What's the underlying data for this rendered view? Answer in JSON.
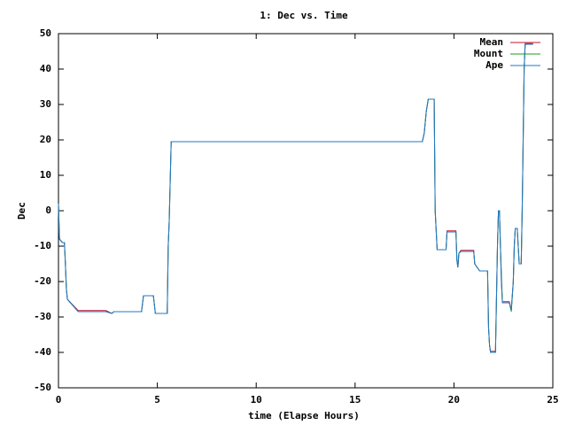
{
  "chart_data": {
    "type": "line",
    "title": "1: Dec vs. Time",
    "x_label": "time (Elapse Hours)",
    "y_label": "Dec",
    "x": [
      0,
      0.05,
      0.2,
      0.3,
      0.35,
      0.4,
      0.45,
      1,
      2.4,
      2.7,
      2.8,
      4.2,
      4.3,
      4.8,
      4.9,
      5.5,
      5.55,
      5.6,
      5.7,
      18.4,
      18.5,
      18.6,
      18.7,
      19.0,
      19.05,
      19.15,
      19.6,
      19.65,
      20.1,
      20.15,
      20.2,
      20.25,
      20.35,
      21.0,
      21.05,
      21.3,
      21.7,
      21.75,
      21.8,
      21.85,
      22.1,
      22.2,
      22.25,
      22.3,
      22.35,
      22.4,
      22.45,
      22.8,
      22.9,
      23.0,
      23.05,
      23.1,
      23.2,
      23.3,
      23.4,
      23.45,
      23.5,
      23.55,
      23.6,
      24.0
    ],
    "series": [
      {
        "name": "Mean",
        "color": "#c8102e",
        "values": [
          2,
          -8,
          -9,
          -9,
          -15,
          -22,
          -25,
          -28.2,
          -28.2,
          -29,
          -28.5,
          -28.5,
          -24,
          -24,
          -29,
          -29,
          -10,
          -3,
          19.5,
          19.5,
          22,
          28,
          31.5,
          31.5,
          0,
          -11,
          -11,
          -5.7,
          -5.7,
          -14,
          -16,
          -12,
          -11.2,
          -11.2,
          -15,
          -17,
          -17,
          -33,
          -38,
          -39.7,
          -39.7,
          -10,
          0,
          0,
          -10,
          -20,
          -25.7,
          -25.7,
          -28,
          -20,
          -10,
          -5,
          -5,
          -15,
          -15,
          0,
          20,
          40,
          47.2,
          47.2
        ]
      },
      {
        "name": "Mount",
        "color": "#1a9e1a",
        "values": [
          2,
          -8,
          -9,
          -9,
          -15,
          -22,
          -25,
          -28.5,
          -28.5,
          -29,
          -28.5,
          -28.5,
          -24,
          -24,
          -29,
          -29,
          -10,
          -3,
          19.5,
          19.5,
          22,
          28,
          31.5,
          31.5,
          0,
          -11,
          -11,
          -6,
          -6,
          -14,
          -16,
          -12,
          -11.5,
          -11.5,
          -15,
          -17,
          -17,
          -33,
          -38,
          -40,
          -40,
          -10,
          0,
          0,
          -10,
          -18,
          -26,
          -26,
          -28.5,
          -20,
          -10,
          -5,
          -5,
          -15,
          -15,
          0,
          20,
          40,
          47,
          47
        ]
      },
      {
        "name": "Ape",
        "color": "#1f78c8",
        "values": [
          2,
          -8,
          -9,
          -9,
          -15,
          -22,
          -25,
          -28.5,
          -28.5,
          -29,
          -28.5,
          -28.5,
          -24,
          -24,
          -29,
          -29,
          -10,
          -3,
          19.5,
          19.5,
          22,
          28,
          31.5,
          31.5,
          0,
          -11,
          -11,
          -6,
          -6,
          -14,
          -16,
          -12,
          -11.5,
          -11.5,
          -15,
          -17,
          -17,
          -33,
          -38,
          -40,
          -40,
          -10,
          0,
          0,
          -10,
          -20,
          -26,
          -26,
          -28,
          -20,
          -10,
          -5,
          -5,
          -15,
          -15,
          0,
          20,
          40,
          47,
          47
        ]
      }
    ],
    "xlim": [
      0,
      25
    ],
    "xticks": [
      0,
      5,
      10,
      15,
      20,
      25
    ],
    "ylim": [
      -50,
      50
    ],
    "yticks": [
      -50,
      -40,
      -30,
      -20,
      -10,
      0,
      10,
      20,
      30,
      40,
      50
    ],
    "legend": "top-right",
    "grid": false
  }
}
